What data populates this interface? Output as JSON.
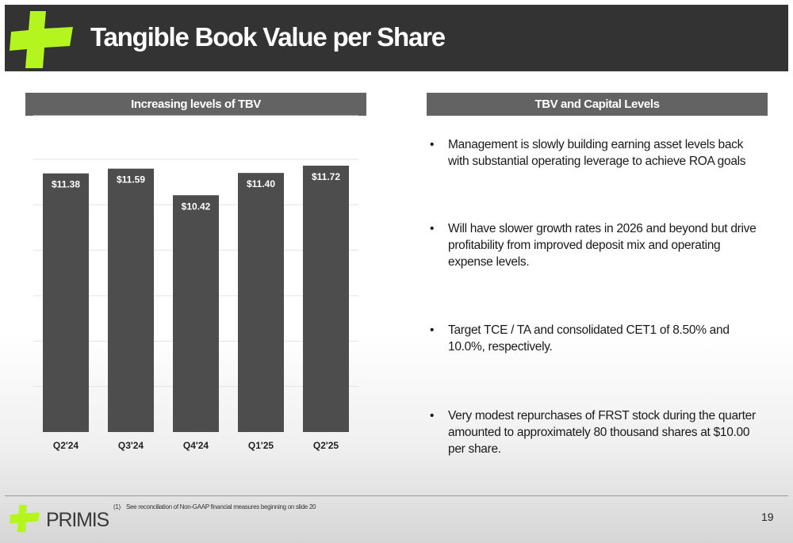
{
  "header": {
    "title": "Tangible Book Value per Share"
  },
  "left_panel": {
    "heading": "Increasing levels of TBV"
  },
  "right_panel": {
    "heading": "TBV and Capital Levels",
    "bullets": [
      "Management is slowly building earning asset levels back with substantial operating leverage to achieve ROA goals",
      "Will have slower growth rates in 2026 and beyond but drive profitability from improved deposit mix and operating expense levels.",
      "Target TCE / TA and consolidated CET1 of 8.50% and 10.0%, respectively.",
      "Very modest repurchases of FRST stock during the quarter amounted to approximately 80 thousand shares at $10.00 per share."
    ]
  },
  "chart_data": {
    "type": "bar",
    "categories": [
      "Q2'24",
      "Q3'24",
      "Q4'24",
      "Q1'25",
      "Q2'25"
    ],
    "values": [
      11.38,
      11.59,
      10.42,
      11.4,
      11.72
    ],
    "data_labels": [
      "$11.38",
      "$11.59",
      "$10.42",
      "$11.40",
      "$11.72"
    ],
    "title": "",
    "xlabel": "",
    "ylabel": "",
    "ylim": [
      0,
      12
    ],
    "grid": true,
    "legend": "none",
    "colors": {
      "bar": "#4d4d4d",
      "grid": "#e3e3e3"
    }
  },
  "footer": {
    "brand": "PRIMIS",
    "footnote_num": "(1)",
    "footnote": "See reconciliation of Non-GAAP financial measures beginning on slide 20",
    "page_number": "19"
  },
  "colors": {
    "accent": "#b5f51f",
    "header_bg": "#333333",
    "panel_head_bg": "#636363"
  },
  "icons": {
    "logo": "primis-cross-logo"
  }
}
